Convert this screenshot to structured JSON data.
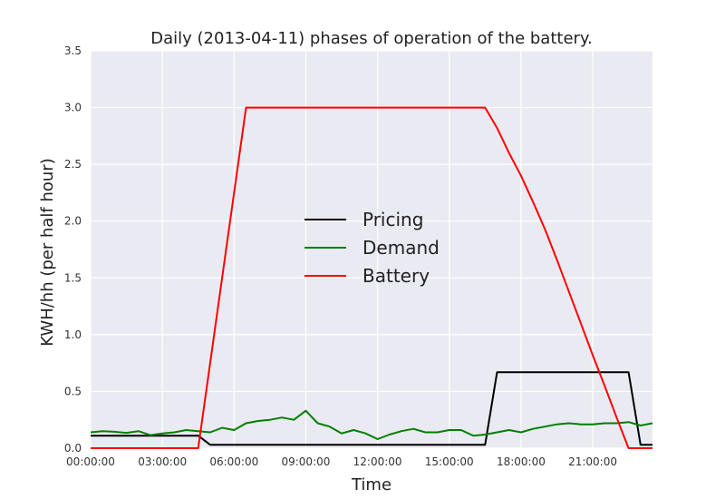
{
  "chart_data": {
    "type": "line",
    "title": "Daily (2013-04-11) phases of operation of the battery.",
    "xlabel": "Time",
    "ylabel": "KWH/hh (per half hour)",
    "xlim": [
      0,
      23.5
    ],
    "ylim": [
      0,
      3.5
    ],
    "xticks": [
      {
        "value": 0,
        "label": "00:00:00"
      },
      {
        "value": 3,
        "label": "03:00:00"
      },
      {
        "value": 6,
        "label": "06:00:00"
      },
      {
        "value": 9,
        "label": "09:00:00"
      },
      {
        "value": 12,
        "label": "12:00:00"
      },
      {
        "value": 15,
        "label": "15:00:00"
      },
      {
        "value": 18,
        "label": "18:00:00"
      },
      {
        "value": 21,
        "label": "21:00:00"
      }
    ],
    "yticks": [
      {
        "value": 0,
        "label": "0.0"
      },
      {
        "value": 0.5,
        "label": "0.5"
      },
      {
        "value": 1.0,
        "label": "1.0"
      },
      {
        "value": 1.5,
        "label": "1.5"
      },
      {
        "value": 2.0,
        "label": "2.0"
      },
      {
        "value": 2.5,
        "label": "2.5"
      },
      {
        "value": 3.0,
        "label": "3.0"
      },
      {
        "value": 3.5,
        "label": "3.5"
      }
    ],
    "grid": true,
    "legend_position": "center",
    "series": [
      {
        "name": "Pricing",
        "color": "#000000",
        "x": [
          0,
          4.5,
          5.0,
          16.5,
          17.0,
          22.5,
          23.0,
          23.5
        ],
        "y": [
          0.11,
          0.11,
          0.03,
          0.03,
          0.67,
          0.67,
          0.03,
          0.03
        ]
      },
      {
        "name": "Demand",
        "color": "#008000",
        "x": [
          0,
          0.5,
          1.0,
          1.5,
          2.0,
          2.5,
          3.0,
          3.5,
          4.0,
          4.5,
          5.0,
          5.5,
          6.0,
          6.5,
          7.0,
          7.5,
          8.0,
          8.5,
          9.0,
          9.5,
          10.0,
          10.5,
          11.0,
          11.5,
          12.0,
          12.5,
          13.0,
          13.5,
          14.0,
          14.5,
          15.0,
          15.5,
          16.0,
          16.5,
          17.0,
          17.5,
          18.0,
          18.5,
          19.0,
          19.5,
          20.0,
          20.5,
          21.0,
          21.5,
          22.0,
          22.5,
          23.0,
          23.5
        ],
        "y": [
          0.14,
          0.15,
          0.145,
          0.135,
          0.15,
          0.115,
          0.13,
          0.14,
          0.16,
          0.15,
          0.14,
          0.18,
          0.16,
          0.22,
          0.24,
          0.25,
          0.27,
          0.25,
          0.33,
          0.22,
          0.19,
          0.13,
          0.16,
          0.13,
          0.08,
          0.12,
          0.15,
          0.17,
          0.14,
          0.14,
          0.16,
          0.16,
          0.11,
          0.12,
          0.14,
          0.16,
          0.14,
          0.17,
          0.19,
          0.21,
          0.22,
          0.21,
          0.21,
          0.22,
          0.22,
          0.23,
          0.2,
          0.22
        ]
      },
      {
        "name": "Battery",
        "color": "#ff0000",
        "x": [
          0,
          4.5,
          6.5,
          16.5,
          17.0,
          17.5,
          18.0,
          18.5,
          19.0,
          19.5,
          20.0,
          20.5,
          21.0,
          21.5,
          22.0,
          22.5,
          23.0,
          23.5
        ],
        "y": [
          0,
          0,
          3.0,
          3.0,
          2.82,
          2.6,
          2.4,
          2.17,
          1.93,
          1.66,
          1.38,
          1.1,
          0.82,
          0.55,
          0.27,
          0,
          0,
          0
        ]
      }
    ]
  }
}
